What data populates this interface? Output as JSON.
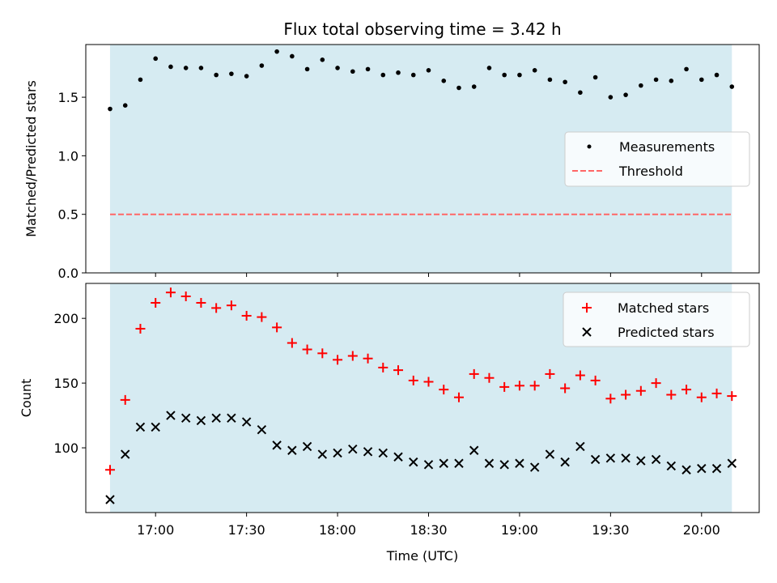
{
  "title": "Flux total observing time = 3.42 h",
  "shade_color": "#add8e6",
  "chart_data": [
    {
      "type": "scatter",
      "ylabel": "Matched/Predicted stars",
      "ylim": [
        0,
        1.95
      ],
      "yticks": [
        0.0,
        0.5,
        1.0,
        1.5
      ],
      "ytick_labels": [
        "0.0",
        "0.5",
        "1.0",
        "1.5"
      ],
      "legend_position": "center-right",
      "threshold": {
        "name": "Threshold",
        "value": 0.5,
        "color": "#ff6666",
        "style": "dashed"
      },
      "series": [
        {
          "name": "Measurements",
          "marker": "dot",
          "color": "#000000",
          "values": [
            1.4,
            1.43,
            1.65,
            1.83,
            1.76,
            1.75,
            1.75,
            1.69,
            1.7,
            1.68,
            1.77,
            1.89,
            1.85,
            1.74,
            1.82,
            1.75,
            1.72,
            1.74,
            1.69,
            1.71,
            1.69,
            1.73,
            1.64,
            1.58,
            1.59,
            1.75,
            1.69,
            1.69,
            1.73,
            1.65,
            1.63,
            1.54,
            1.67,
            1.5,
            1.52,
            1.6,
            1.65,
            1.64,
            1.74,
            1.65,
            1.69,
            1.59
          ]
        }
      ]
    },
    {
      "type": "scatter",
      "xlabel": "Time (UTC)",
      "ylabel": "Count",
      "ylim": [
        50,
        227
      ],
      "yticks": [
        100,
        150,
        200
      ],
      "ytick_labels": [
        "100",
        "150",
        "200"
      ],
      "legend_position": "top-right",
      "series": [
        {
          "name": "Matched stars",
          "marker": "plus",
          "color": "#ff0000",
          "values": [
            83,
            137,
            192,
            212,
            220,
            217,
            212,
            208,
            210,
            202,
            201,
            193,
            181,
            176,
            173,
            168,
            171,
            169,
            162,
            160,
            152,
            151,
            145,
            139,
            157,
            154,
            147,
            148,
            148,
            157,
            146,
            156,
            152,
            138,
            141,
            144,
            150,
            141,
            145,
            139,
            142,
            140
          ]
        },
        {
          "name": "Predicted stars",
          "marker": "x",
          "color": "#000000",
          "values": [
            60,
            95,
            116,
            116,
            125,
            123,
            121,
            123,
            123,
            120,
            114,
            102,
            98,
            101,
            95,
            96,
            99,
            97,
            96,
            93,
            89,
            87,
            88,
            88,
            98,
            88,
            87,
            88,
            85,
            95,
            89,
            101,
            91,
            92,
            92,
            90,
            91,
            86,
            83,
            84,
            84,
            88
          ]
        }
      ]
    }
  ],
  "time_axis": {
    "start": "16:45",
    "end": "20:10",
    "range": [
      "16:37",
      "20:19"
    ],
    "ticks": [
      "17:00",
      "17:30",
      "18:00",
      "18:30",
      "19:00",
      "19:30",
      "20:00"
    ]
  }
}
